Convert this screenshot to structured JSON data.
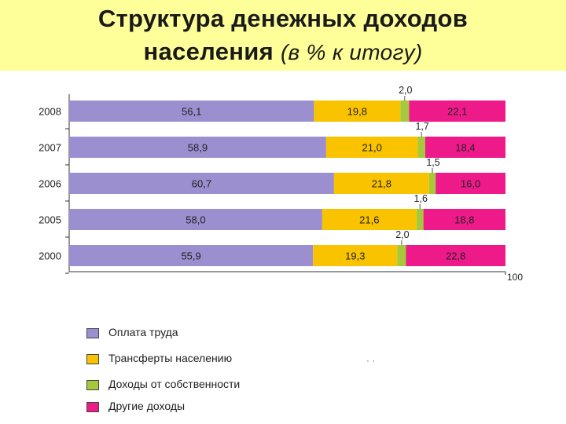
{
  "title_line1": "Структура денежных доходов",
  "title_line2_main": "населения",
  "title_line2_paren": "(в % к итогу)",
  "colors": {
    "title_background": "#ffff99",
    "wages": "#9b8fd0",
    "transfers": "#f9c300",
    "property": "#a6c93c",
    "other": "#ee1a8a"
  },
  "chart_data": {
    "type": "bar",
    "orientation": "horizontal",
    "stacked": true,
    "categories": [
      "2008",
      "2007",
      "2006",
      "2005",
      "2000"
    ],
    "series": [
      {
        "name": "Оплата труда",
        "values": [
          56.1,
          58.9,
          60.7,
          58.0,
          55.9
        ],
        "labels": [
          "56,1",
          "58,9",
          "60,7",
          "58,0",
          "55,9"
        ]
      },
      {
        "name": "Трансферты населению",
        "values": [
          19.8,
          21.0,
          21.8,
          21.6,
          19.3
        ],
        "labels": [
          "19,8",
          "21,0",
          "21,8",
          "21,6",
          "19,3"
        ]
      },
      {
        "name": "Доходы от собственности",
        "values": [
          2.0,
          1.7,
          1.5,
          1.6,
          2.0
        ],
        "labels": [
          "2,0",
          "1,7",
          "1,5",
          "1,6",
          "2,0"
        ]
      },
      {
        "name": "Другие доходы",
        "values": [
          22.1,
          18.4,
          16.0,
          18.8,
          22.8
        ],
        "labels": [
          "22,1",
          "18,4",
          "16,0",
          "18,8",
          "22,8"
        ]
      }
    ],
    "xlim": [
      0,
      100
    ],
    "x_tick_label": "100",
    "legend_position": "bottom-left",
    "grid": false
  },
  "legend": [
    {
      "label": "Оплата труда",
      "color": "#9b8fd0"
    },
    {
      "label": "Трансферты населению",
      "color": "#f9c300"
    },
    {
      "label": "Доходы от собственности",
      "color": "#a6c93c"
    },
    {
      "label": "Другие доходы",
      "color": "#ee1a8a"
    }
  ],
  "stray_mark": "· ·"
}
